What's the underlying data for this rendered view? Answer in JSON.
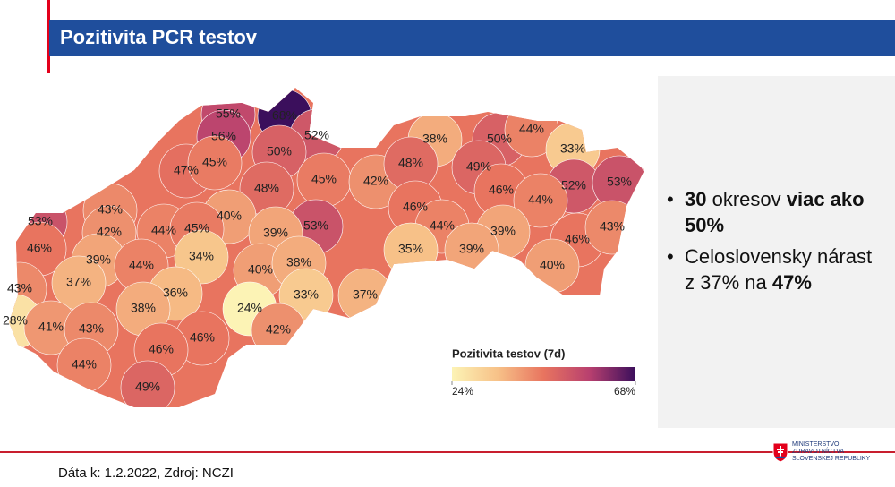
{
  "header": {
    "title": "Pozitivita PCR testov"
  },
  "map": {
    "districts": [
      {
        "value": 55,
        "label": "55%"
      },
      {
        "value": 68,
        "label": "68%"
      },
      {
        "value": 56,
        "label": "56%"
      },
      {
        "value": 52,
        "label": "52%"
      },
      {
        "value": 50,
        "label": "50%"
      },
      {
        "value": 47,
        "label": "47%"
      },
      {
        "value": 45,
        "label": "45%"
      },
      {
        "value": 48,
        "label": "48%"
      },
      {
        "value": 45,
        "label": "45%"
      },
      {
        "value": 42,
        "label": "42%"
      },
      {
        "value": 38,
        "label": "38%"
      },
      {
        "value": 50,
        "label": "50%"
      },
      {
        "value": 44,
        "label": "44%"
      },
      {
        "value": 33,
        "label": "33%"
      },
      {
        "value": 48,
        "label": "48%"
      },
      {
        "value": 49,
        "label": "49%"
      },
      {
        "value": 52,
        "label": "52%"
      },
      {
        "value": 53,
        "label": "53%"
      },
      {
        "value": 46,
        "label": "46%"
      },
      {
        "value": 44,
        "label": "44%"
      },
      {
        "value": 46,
        "label": "46%"
      },
      {
        "value": 43,
        "label": "43%"
      },
      {
        "value": 40,
        "label": "40%"
      },
      {
        "value": 53,
        "label": "53%"
      },
      {
        "value": 44,
        "label": "44%"
      },
      {
        "value": 39,
        "label": "39%"
      },
      {
        "value": 46,
        "label": "46%"
      },
      {
        "value": 43,
        "label": "43%"
      },
      {
        "value": 53,
        "label": "53%"
      },
      {
        "value": 42,
        "label": "42%"
      },
      {
        "value": 44,
        "label": "44%"
      },
      {
        "value": 45,
        "label": "45%"
      },
      {
        "value": 39,
        "label": "39%"
      },
      {
        "value": 35,
        "label": "35%"
      },
      {
        "value": 39,
        "label": "39%"
      },
      {
        "value": 46,
        "label": "46%"
      },
      {
        "value": 39,
        "label": "39%"
      },
      {
        "value": 34,
        "label": "34%"
      },
      {
        "value": 40,
        "label": "40%"
      },
      {
        "value": 38,
        "label": "38%"
      },
      {
        "value": 44,
        "label": "44%"
      },
      {
        "value": 40,
        "label": "40%"
      },
      {
        "value": 43,
        "label": "43%"
      },
      {
        "value": 37,
        "label": "37%"
      },
      {
        "value": 36,
        "label": "36%"
      },
      {
        "value": 33,
        "label": "33%"
      },
      {
        "value": 37,
        "label": "37%"
      },
      {
        "value": 24,
        "label": "24%"
      },
      {
        "value": 38,
        "label": "38%"
      },
      {
        "value": 28,
        "label": "28%"
      },
      {
        "value": 41,
        "label": "41%"
      },
      {
        "value": 43,
        "label": "43%"
      },
      {
        "value": 42,
        "label": "42%"
      },
      {
        "value": 46,
        "label": "46%"
      },
      {
        "value": 46,
        "label": "46%"
      },
      {
        "value": 44,
        "label": "44%"
      },
      {
        "value": 49,
        "label": "49%"
      }
    ],
    "legend": {
      "title": "Pozitivita testov (7d)",
      "min": {
        "value": 24,
        "label": "24%"
      },
      "max": {
        "value": 68,
        "label": "68%"
      },
      "colors": [
        "#fcf3b5",
        "#f7c188",
        "#e8745f",
        "#b8406f",
        "#3b0f5c"
      ]
    }
  },
  "bullets": [
    [
      "30",
      " okresov ",
      "viac ako 50%"
    ],
    [
      "Celoslovensky nárast z 37% na ",
      "47%"
    ]
  ],
  "footer": {
    "source": "Dáta k: 1.2.2022, Zdroj: NCZI",
    "logo": [
      "MINISTERSTVO",
      "ZDRAVOTNÍCTVA",
      "SLOVENSKEJ REPUBLIKY"
    ]
  }
}
